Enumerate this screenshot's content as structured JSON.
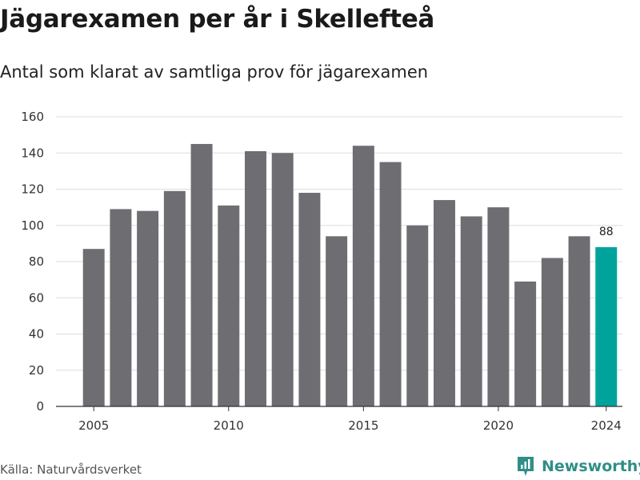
{
  "title": "Jägarexamen per år i Skellefteå",
  "subtitle": "Antal som klarat av samtliga prov för jägarexamen",
  "source": "Källa: Naturvårdsverket",
  "brand": "Newsworthy",
  "colors": {
    "bar": "#6e6d72",
    "highlight": "#00a39b",
    "grid": "#dddddd",
    "axis": "#333333",
    "brand": "#2f8f87"
  },
  "chart_data": {
    "type": "bar",
    "title": "Jägarexamen per år i Skellefteå",
    "subtitle": "Antal som klarat av samtliga prov för jägarexamen",
    "xlabel": "",
    "ylabel": "",
    "x": [
      2005,
      2006,
      2007,
      2008,
      2009,
      2010,
      2011,
      2012,
      2013,
      2014,
      2015,
      2016,
      2017,
      2018,
      2019,
      2020,
      2021,
      2022,
      2023,
      2024
    ],
    "values": [
      87,
      109,
      108,
      119,
      145,
      111,
      141,
      140,
      118,
      94,
      144,
      135,
      100,
      114,
      105,
      110,
      69,
      82,
      94,
      88
    ],
    "highlight": [
      2024
    ],
    "data_labels": [
      {
        "x": 2024,
        "label": "88"
      }
    ],
    "ylim": [
      0,
      160
    ],
    "yticks": [
      0,
      20,
      40,
      60,
      80,
      100,
      120,
      140,
      160
    ],
    "xticks": [
      2005,
      2010,
      2015,
      2020,
      2024
    ],
    "grid": "horizontal"
  }
}
